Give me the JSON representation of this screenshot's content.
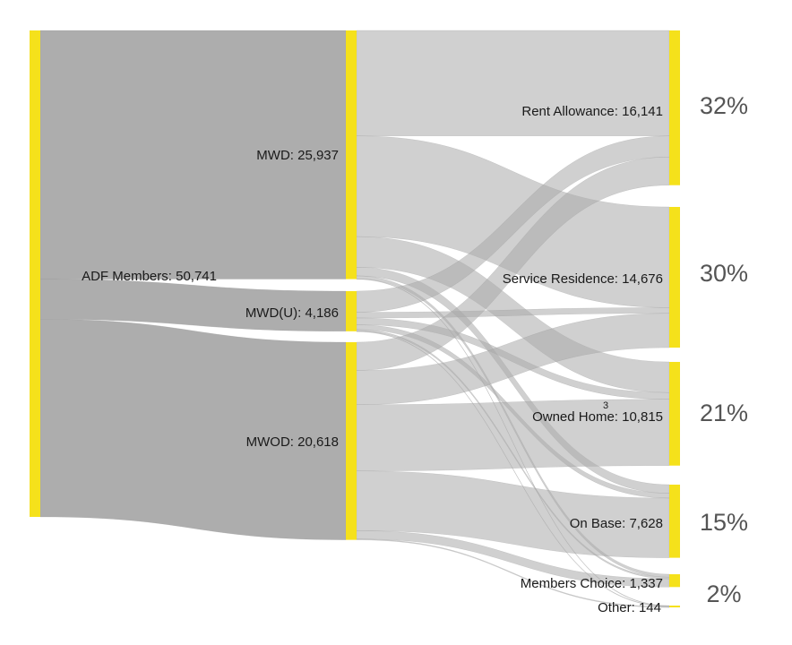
{
  "colors": {
    "node": "#f5e11b",
    "link": "#a9a9a9",
    "bg": "#ffffff"
  },
  "chart_data": {
    "type": "sankey",
    "nodes": [
      {
        "id": "adf",
        "label": "ADF Members: 50,741",
        "value": 50741,
        "column": 0
      },
      {
        "id": "mwd",
        "label": "MWD: 25,937",
        "value": 25937,
        "column": 1
      },
      {
        "id": "mwdu",
        "label": "MWD(U): 4,186",
        "value": 4186,
        "column": 1
      },
      {
        "id": "mwod",
        "label": "MWOD: 20,618",
        "value": 20618,
        "column": 1
      },
      {
        "id": "rent",
        "label": "Rent Allowance: 16,141",
        "value": 16141,
        "column": 2,
        "percent": "32%"
      },
      {
        "id": "service",
        "label": "Service Residence: 14,676",
        "value": 14676,
        "column": 2,
        "percent": "30%"
      },
      {
        "id": "owned",
        "label": "Owned Home: 10,815",
        "value": 10815,
        "column": 2,
        "percent": "21%",
        "superscript": "3"
      },
      {
        "id": "onbase",
        "label": "On Base: 7,628",
        "value": 7628,
        "column": 2,
        "percent": "15%"
      },
      {
        "id": "choice",
        "label": "Members Choice: 1,337",
        "value": 1337,
        "column": 2,
        "percent": "2%"
      },
      {
        "id": "other",
        "label": "Other: 144",
        "value": 144,
        "column": 2
      }
    ],
    "links": [
      {
        "source": "adf",
        "target": "mwd",
        "value": 25937
      },
      {
        "source": "adf",
        "target": "mwdu",
        "value": 4186
      },
      {
        "source": "adf",
        "target": "mwod",
        "value": 20618
      },
      {
        "source": "mwd",
        "target": "rent",
        "value": 11000
      },
      {
        "source": "mwd",
        "target": "service",
        "value": 10500
      },
      {
        "source": "mwd",
        "target": "owned",
        "value": 3200
      },
      {
        "source": "mwd",
        "target": "onbase",
        "value": 900
      },
      {
        "source": "mwd",
        "target": "choice",
        "value": 300
      },
      {
        "source": "mwd",
        "target": "other",
        "value": 37
      },
      {
        "source": "mwdu",
        "target": "rent",
        "value": 2200
      },
      {
        "source": "mwdu",
        "target": "service",
        "value": 600
      },
      {
        "source": "mwdu",
        "target": "owned",
        "value": 700
      },
      {
        "source": "mwdu",
        "target": "onbase",
        "value": 500
      },
      {
        "source": "mwdu",
        "target": "choice",
        "value": 170
      },
      {
        "source": "mwdu",
        "target": "other",
        "value": 16
      },
      {
        "source": "mwod",
        "target": "rent",
        "value": 2941
      },
      {
        "source": "mwod",
        "target": "service",
        "value": 3576
      },
      {
        "source": "mwod",
        "target": "owned",
        "value": 6915
      },
      {
        "source": "mwod",
        "target": "onbase",
        "value": 6228
      },
      {
        "source": "mwod",
        "target": "choice",
        "value": 867
      },
      {
        "source": "mwod",
        "target": "other",
        "value": 91
      }
    ]
  }
}
